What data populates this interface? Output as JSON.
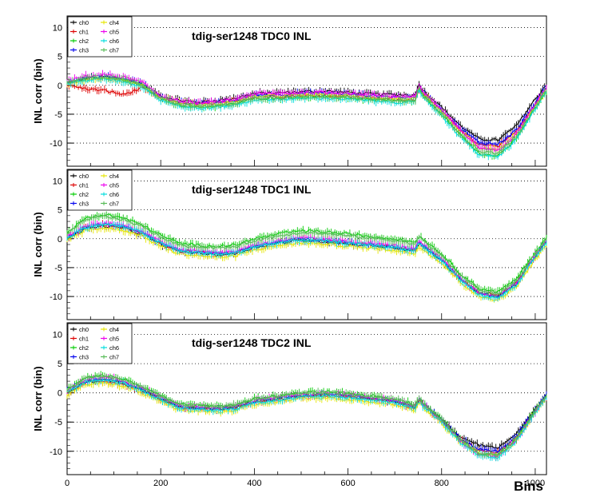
{
  "chart_data": [
    {
      "type": "line",
      "title": "tdig-ser1248 TDC0 INL",
      "xlabel": "",
      "ylabel": "INL corr (bin)",
      "xlim": [
        0,
        1024
      ],
      "ylim": [
        -14,
        12
      ],
      "yticks": [
        "10",
        "5",
        "0",
        "-5",
        "-10"
      ],
      "xticks": [],
      "grid": "horizontal-dotted",
      "legend": {
        "position": "top-left",
        "entries": [
          {
            "label": "ch0",
            "color": "#000000"
          },
          {
            "label": "ch1",
            "color": "#dd0000"
          },
          {
            "label": "ch2",
            "color": "#00cc00"
          },
          {
            "label": "ch3",
            "color": "#0000ee"
          },
          {
            "label": "ch4",
            "color": "#e6e600"
          },
          {
            "label": "ch5",
            "color": "#ee00ee"
          },
          {
            "label": "ch6",
            "color": "#00dddd"
          },
          {
            "label": "ch7",
            "color": "#55bb55"
          }
        ]
      },
      "x": [
        0,
        40,
        80,
        120,
        160,
        200,
        240,
        280,
        320,
        360,
        400,
        450,
        500,
        550,
        600,
        650,
        700,
        745,
        750,
        760,
        800,
        840,
        880,
        920,
        960,
        990,
        1024
      ],
      "series": [
        {
          "name": "ch0",
          "values": [
            0.3,
            1.2,
            1.5,
            1.1,
            0.3,
            -1.8,
            -2.6,
            -2.9,
            -2.6,
            -2.2,
            -1.4,
            -1.3,
            -1.1,
            -1.0,
            -1.2,
            -1.5,
            -1.6,
            -1.7,
            0.5,
            -0.8,
            -3.8,
            -7.0,
            -9.3,
            -9.5,
            -7.0,
            -3.5,
            0.2
          ]
        },
        {
          "name": "ch1",
          "values": [
            0.0,
            -0.6,
            -0.9,
            -1.6,
            -0.5,
            -2.2,
            -3.0,
            -3.3,
            -3.1,
            -2.8,
            -2.0,
            -1.9,
            -1.8,
            -1.7,
            -1.9,
            -2.2,
            -2.4,
            -2.5,
            -0.5,
            -1.5,
            -4.5,
            -7.8,
            -10.2,
            -10.5,
            -8.0,
            -4.5,
            -0.6
          ]
        },
        {
          "name": "ch2",
          "values": [
            0.5,
            1.1,
            1.3,
            0.9,
            0.0,
            -2.3,
            -3.4,
            -3.8,
            -3.6,
            -3.2,
            -2.3,
            -2.2,
            -2.1,
            -2.0,
            -2.2,
            -2.5,
            -2.7,
            -2.8,
            -0.4,
            -1.8,
            -5.0,
            -8.6,
            -11.8,
            -12.3,
            -9.2,
            -5.2,
            -0.9
          ]
        },
        {
          "name": "ch3",
          "values": [
            0.4,
            1.3,
            1.5,
            1.1,
            0.3,
            -2.0,
            -2.9,
            -3.2,
            -3.0,
            -2.6,
            -1.7,
            -1.6,
            -1.4,
            -1.3,
            -1.5,
            -1.8,
            -2.0,
            -2.1,
            0.0,
            -1.2,
            -4.2,
            -7.5,
            -9.9,
            -10.2,
            -7.7,
            -4.2,
            -0.3
          ]
        },
        {
          "name": "ch4",
          "values": [
            0.2,
            1.0,
            1.3,
            0.9,
            0.1,
            -2.1,
            -3.0,
            -3.4,
            -3.2,
            -2.8,
            -1.9,
            -1.8,
            -1.7,
            -1.6,
            -1.8,
            -2.1,
            -2.3,
            -2.4,
            -0.2,
            -1.5,
            -4.6,
            -8.0,
            -10.8,
            -11.2,
            -8.5,
            -4.8,
            -0.6
          ]
        },
        {
          "name": "ch5",
          "values": [
            0.6,
            1.6,
            1.8,
            1.4,
            0.5,
            -1.9,
            -2.8,
            -3.1,
            -2.9,
            -2.5,
            -1.5,
            -1.4,
            -1.3,
            -1.2,
            -1.4,
            -1.7,
            -1.9,
            -2.0,
            0.2,
            -1.1,
            -4.3,
            -7.8,
            -10.8,
            -11.3,
            -8.4,
            -4.5,
            -0.4
          ]
        },
        {
          "name": "ch6",
          "values": [
            0.3,
            0.9,
            1.1,
            0.7,
            -0.2,
            -2.5,
            -3.6,
            -4.0,
            -3.8,
            -3.4,
            -2.5,
            -2.4,
            -2.3,
            -2.2,
            -2.4,
            -2.7,
            -2.9,
            -3.0,
            -0.6,
            -2.0,
            -5.2,
            -8.9,
            -12.0,
            -12.4,
            -9.3,
            -5.4,
            -1.0
          ]
        },
        {
          "name": "ch7",
          "values": [
            0.4,
            1.2,
            1.4,
            1.0,
            0.1,
            -2.2,
            -3.3,
            -3.7,
            -3.5,
            -3.1,
            -2.2,
            -2.1,
            -2.0,
            -1.9,
            -2.1,
            -2.4,
            -2.6,
            -2.7,
            -0.3,
            -1.7,
            -4.9,
            -8.4,
            -11.4,
            -11.8,
            -8.9,
            -5.0,
            -0.8
          ]
        }
      ]
    },
    {
      "type": "line",
      "title": "tdig-ser1248 TDC1 INL",
      "xlabel": "",
      "ylabel": "INL corr (bin)",
      "xlim": [
        0,
        1024
      ],
      "ylim": [
        -14,
        12
      ],
      "yticks": [
        "10",
        "5",
        "0",
        "-5",
        "-10"
      ],
      "xticks": [],
      "grid": "horizontal-dotted",
      "legend": {
        "position": "top-left",
        "entries": [
          {
            "label": "ch0",
            "color": "#000000"
          },
          {
            "label": "ch1",
            "color": "#dd0000"
          },
          {
            "label": "ch2",
            "color": "#00cc00"
          },
          {
            "label": "ch3",
            "color": "#0000ee"
          },
          {
            "label": "ch4",
            "color": "#e6e600"
          },
          {
            "label": "ch5",
            "color": "#ee00ee"
          },
          {
            "label": "ch6",
            "color": "#00dddd"
          },
          {
            "label": "ch7",
            "color": "#55bb55"
          }
        ]
      },
      "x": [
        0,
        40,
        80,
        120,
        160,
        200,
        240,
        280,
        320,
        360,
        400,
        450,
        500,
        550,
        600,
        650,
        700,
        745,
        750,
        760,
        800,
        840,
        880,
        920,
        960,
        990,
        1024
      ],
      "series": [
        {
          "name": "ch0",
          "values": [
            0.0,
            1.8,
            2.2,
            1.8,
            0.8,
            -1.0,
            -2.2,
            -2.5,
            -2.8,
            -2.6,
            -1.5,
            -0.8,
            -0.3,
            -0.5,
            -0.9,
            -1.2,
            -1.6,
            -2.2,
            -0.8,
            -1.4,
            -3.8,
            -7.0,
            -9.5,
            -10.0,
            -7.8,
            -4.2,
            -0.6
          ]
        },
        {
          "name": "ch1",
          "values": [
            0.2,
            2.0,
            2.4,
            2.0,
            1.0,
            -0.8,
            -2.0,
            -2.3,
            -2.6,
            -2.4,
            -1.3,
            -0.6,
            -0.1,
            -0.3,
            -0.7,
            -1.0,
            -1.4,
            -2.0,
            -0.6,
            -1.2,
            -3.6,
            -6.8,
            -9.3,
            -9.8,
            -7.6,
            -4.0,
            -0.4
          ]
        },
        {
          "name": "ch2",
          "values": [
            1.0,
            3.6,
            4.2,
            3.6,
            2.4,
            0.6,
            -0.8,
            -1.1,
            -1.3,
            -1.1,
            0.0,
            0.8,
            1.4,
            1.2,
            0.8,
            0.4,
            0.0,
            -0.6,
            0.6,
            0.0,
            -2.6,
            -6.0,
            -8.6,
            -9.2,
            -7.0,
            -3.4,
            0.2
          ]
        },
        {
          "name": "ch3",
          "values": [
            0.1,
            2.1,
            2.5,
            2.1,
            1.1,
            -0.8,
            -2.0,
            -2.3,
            -2.6,
            -2.4,
            -1.3,
            -0.6,
            -0.1,
            -0.3,
            -0.7,
            -1.0,
            -1.4,
            -2.0,
            -0.6,
            -1.2,
            -3.7,
            -6.9,
            -9.4,
            -9.9,
            -7.7,
            -4.1,
            -0.5
          ]
        },
        {
          "name": "ch4",
          "values": [
            -0.2,
            1.5,
            1.9,
            1.5,
            0.5,
            -1.3,
            -2.6,
            -2.9,
            -3.2,
            -3.0,
            -1.9,
            -1.2,
            -0.7,
            -0.9,
            -1.3,
            -1.6,
            -2.0,
            -2.6,
            -1.2,
            -1.8,
            -4.2,
            -7.5,
            -10.0,
            -10.6,
            -8.3,
            -4.7,
            -1.0
          ]
        },
        {
          "name": "ch5",
          "values": [
            0.3,
            2.2,
            2.7,
            2.3,
            1.3,
            -0.6,
            -1.8,
            -2.1,
            -2.4,
            -2.2,
            -1.1,
            -0.4,
            0.1,
            -0.1,
            -0.5,
            -0.8,
            -1.2,
            -1.8,
            -0.4,
            -1.0,
            -3.5,
            -6.8,
            -9.4,
            -10.0,
            -7.7,
            -4.0,
            -0.4
          ]
        },
        {
          "name": "ch6",
          "values": [
            0.2,
            2.0,
            2.5,
            2.1,
            1.1,
            -0.8,
            -2.1,
            -2.4,
            -2.7,
            -2.5,
            -1.4,
            -0.7,
            -0.2,
            -0.4,
            -0.8,
            -1.1,
            -1.5,
            -2.1,
            -0.7,
            -1.3,
            -3.8,
            -7.1,
            -9.7,
            -10.3,
            -8.0,
            -4.3,
            -0.7
          ]
        },
        {
          "name": "ch7",
          "values": [
            0.8,
            3.3,
            3.9,
            3.3,
            2.1,
            0.3,
            -1.1,
            -1.4,
            -1.6,
            -1.4,
            -0.3,
            0.5,
            1.1,
            0.9,
            0.5,
            0.1,
            -0.3,
            -0.9,
            0.3,
            -0.3,
            -2.9,
            -6.3,
            -8.9,
            -9.5,
            -7.3,
            -3.7,
            -0.1
          ]
        }
      ]
    },
    {
      "type": "line",
      "title": "tdig-ser1248 TDC2 INL",
      "xlabel": "Bins",
      "ylabel": "INL corr (bin)",
      "xlim": [
        0,
        1024
      ],
      "ylim": [
        -14,
        12
      ],
      "yticks": [
        "10",
        "5",
        "0",
        "-5",
        "-10"
      ],
      "xticks": [
        "0",
        "200",
        "400",
        "600",
        "800",
        "1000"
      ],
      "grid": "horizontal-dotted",
      "legend": {
        "position": "top-left",
        "entries": [
          {
            "label": "ch0",
            "color": "#000000"
          },
          {
            "label": "ch1",
            "color": "#dd0000"
          },
          {
            "label": "ch2",
            "color": "#00cc00"
          },
          {
            "label": "ch3",
            "color": "#0000ee"
          },
          {
            "label": "ch4",
            "color": "#e6e600"
          },
          {
            "label": "ch5",
            "color": "#ee00ee"
          },
          {
            "label": "ch6",
            "color": "#00dddd"
          },
          {
            "label": "ch7",
            "color": "#55bb55"
          }
        ]
      },
      "x": [
        0,
        40,
        80,
        120,
        160,
        200,
        240,
        280,
        320,
        360,
        400,
        450,
        500,
        550,
        600,
        650,
        700,
        745,
        750,
        760,
        800,
        840,
        880,
        920,
        960,
        990,
        1024
      ],
      "series": [
        {
          "name": "ch0",
          "values": [
            0.0,
            1.8,
            2.2,
            1.6,
            0.5,
            -1.0,
            -2.4,
            -2.6,
            -2.8,
            -2.5,
            -1.5,
            -1.0,
            -0.5,
            -0.3,
            -0.6,
            -1.0,
            -1.5,
            -2.5,
            -1.0,
            -2.0,
            -4.5,
            -7.5,
            -9.0,
            -9.4,
            -7.0,
            -3.8,
            -0.3
          ]
        },
        {
          "name": "ch1",
          "values": [
            0.0,
            1.8,
            2.1,
            1.5,
            0.3,
            -1.1,
            -2.5,
            -2.7,
            -2.9,
            -2.6,
            -1.6,
            -1.1,
            -0.6,
            -0.4,
            -0.7,
            -1.1,
            -1.6,
            -2.6,
            -1.1,
            -2.1,
            -4.8,
            -8.0,
            -9.8,
            -10.2,
            -7.6,
            -4.2,
            -0.6
          ]
        },
        {
          "name": "ch2",
          "values": [
            0.6,
            2.6,
            3.0,
            2.4,
            1.1,
            -0.5,
            -1.9,
            -2.1,
            -2.3,
            -2.0,
            -1.0,
            -0.5,
            0.0,
            0.2,
            -0.1,
            -0.5,
            -1.0,
            -2.0,
            -0.6,
            -1.6,
            -4.5,
            -8.0,
            -10.2,
            -10.6,
            -7.8,
            -4.0,
            -0.4
          ]
        },
        {
          "name": "ch3",
          "values": [
            0.2,
            2.0,
            2.4,
            1.8,
            0.6,
            -0.9,
            -2.3,
            -2.5,
            -2.7,
            -2.4,
            -1.4,
            -0.9,
            -0.4,
            -0.2,
            -0.5,
            -0.9,
            -1.4,
            -2.4,
            -0.9,
            -1.9,
            -4.6,
            -7.8,
            -9.6,
            -10.0,
            -7.4,
            -4.0,
            -0.2
          ]
        },
        {
          "name": "ch4",
          "values": [
            -0.3,
            1.4,
            1.8,
            1.2,
            0.0,
            -1.5,
            -2.9,
            -3.1,
            -3.3,
            -3.0,
            -2.0,
            -1.5,
            -1.0,
            -0.8,
            -1.1,
            -1.5,
            -2.0,
            -3.0,
            -1.5,
            -2.5,
            -5.2,
            -8.4,
            -10.4,
            -10.8,
            -8.2,
            -4.6,
            -0.8
          ]
        },
        {
          "name": "ch5",
          "values": [
            0.4,
            2.3,
            2.7,
            2.1,
            0.8,
            -0.8,
            -2.2,
            -2.4,
            -2.6,
            -2.3,
            -1.3,
            -0.8,
            -0.3,
            -0.1,
            -0.4,
            -0.8,
            -1.3,
            -2.3,
            -0.8,
            -1.8,
            -4.8,
            -8.3,
            -10.5,
            -10.9,
            -8.1,
            -4.4,
            -0.6
          ]
        },
        {
          "name": "ch6",
          "values": [
            0.1,
            1.9,
            2.3,
            1.7,
            0.4,
            -1.2,
            -2.6,
            -2.8,
            -3.0,
            -2.7,
            -1.7,
            -1.2,
            -0.7,
            -0.5,
            -0.8,
            -1.2,
            -1.7,
            -2.7,
            -1.2,
            -2.2,
            -5.0,
            -8.5,
            -10.7,
            -11.1,
            -8.3,
            -4.6,
            -0.8
          ]
        },
        {
          "name": "ch7",
          "values": [
            0.5,
            2.5,
            2.9,
            2.3,
            1.0,
            -0.6,
            -2.0,
            -2.2,
            -2.4,
            -2.1,
            -1.1,
            -0.6,
            -0.1,
            0.1,
            -0.2,
            -0.6,
            -1.1,
            -2.1,
            -0.7,
            -1.7,
            -4.6,
            -8.1,
            -10.3,
            -10.7,
            -7.9,
            -4.1,
            -0.5
          ]
        }
      ]
    }
  ]
}
